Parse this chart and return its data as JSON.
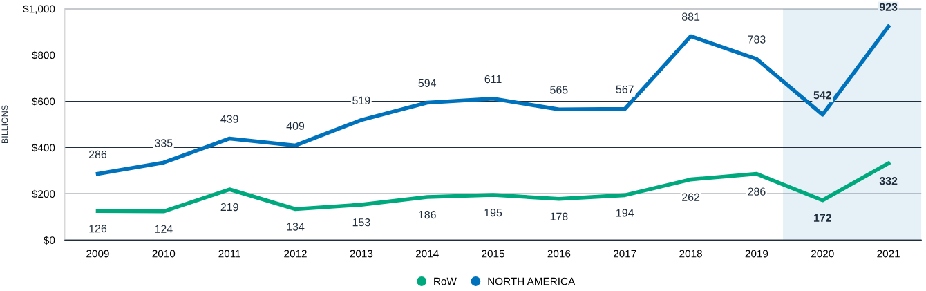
{
  "chart_data": {
    "type": "line",
    "ylabel": "BILLIONS",
    "categories": [
      "2009",
      "2010",
      "2011",
      "2012",
      "2013",
      "2014",
      "2015",
      "2016",
      "2017",
      "2018",
      "2019",
      "2020",
      "2021"
    ],
    "series": [
      {
        "name": "RoW",
        "color": "#00a87e",
        "values": [
          126,
          124,
          219,
          134,
          153,
          186,
          195,
          178,
          194,
          262,
          286,
          172,
          332
        ]
      },
      {
        "name": "NORTH AMERICA",
        "color": "#0072bc",
        "values": [
          286,
          335,
          439,
          409,
          519,
          594,
          611,
          565,
          567,
          881,
          783,
          542,
          923
        ]
      }
    ],
    "ylim": [
      0,
      1000
    ],
    "yticks": [
      {
        "value": 0,
        "label": "$0"
      },
      {
        "value": 200,
        "label": "$200"
      },
      {
        "value": 400,
        "label": "$400"
      },
      {
        "value": 600,
        "label": "$600"
      },
      {
        "value": 800,
        "label": "$800"
      },
      {
        "value": 1000,
        "label": "$1,000"
      }
    ],
    "bands": [
      {
        "axis": "x",
        "from": "2020",
        "to": "2021",
        "color": "#e6f1f7"
      }
    ],
    "grid": "y",
    "legend": "bottom",
    "data_labels": true
  }
}
